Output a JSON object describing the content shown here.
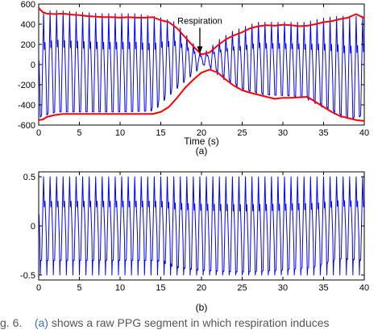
{
  "chart_data": [
    {
      "type": "line",
      "panel_label": "(a)",
      "xlabel": "Time (s)",
      "ylabel": "",
      "xlim": [
        0,
        40
      ],
      "ylim": [
        -600,
        600
      ],
      "xticks": [
        0,
        5,
        10,
        15,
        20,
        25,
        30,
        35,
        40
      ],
      "yticks": [
        600,
        400,
        200,
        0,
        -200,
        -400,
        -600
      ],
      "grid": false,
      "annotation": {
        "text": "Respiration",
        "x": 19.8,
        "y": 100
      },
      "series": [
        {
          "color": "#0000ff",
          "kind": "raw-ppg-oscillation",
          "cycle_period_s": 0.8,
          "upper_limit": [
            [
              0,
              500
            ],
            [
              2,
              540
            ],
            [
              5,
              520
            ],
            [
              8,
              505
            ],
            [
              12,
              505
            ],
            [
              15,
              470
            ],
            [
              17,
              420
            ],
            [
              19,
              230
            ],
            [
              20,
              120
            ],
            [
              21,
              140
            ],
            [
              22,
              230
            ],
            [
              24,
              330
            ],
            [
              27,
              420
            ],
            [
              30,
              420
            ],
            [
              33,
              420
            ],
            [
              35,
              460
            ],
            [
              37,
              480
            ],
            [
              40,
              480
            ]
          ],
          "lower_limit": [
            [
              0,
              -520
            ],
            [
              2,
              -470
            ],
            [
              5,
              -470
            ],
            [
              10,
              -470
            ],
            [
              14,
              -460
            ],
            [
              15,
              -370
            ],
            [
              17,
              -220
            ],
            [
              19,
              -80
            ],
            [
              20,
              0
            ],
            [
              21,
              -10
            ],
            [
              23,
              -140
            ],
            [
              25,
              -245
            ],
            [
              28,
              -300
            ],
            [
              31,
              -310
            ],
            [
              33,
              -330
            ],
            [
              36,
              -455
            ],
            [
              38,
              -545
            ],
            [
              40,
              -500
            ]
          ]
        },
        {
          "name": "",
          "color": "#ff0000",
          "kind": "upper-envelope",
          "x": [
            0,
            0.5,
            1,
            2,
            3,
            4,
            5,
            6,
            7,
            8,
            9,
            10,
            11,
            12,
            13,
            14,
            15,
            16,
            17,
            18,
            19,
            20,
            21,
            22,
            23,
            24,
            25,
            26,
            27,
            28,
            29,
            30,
            31,
            32,
            33,
            34,
            35,
            36,
            37,
            38,
            39,
            40
          ],
          "y": [
            560,
            520,
            505,
            500,
            505,
            495,
            490,
            480,
            475,
            470,
            470,
            465,
            470,
            465,
            465,
            470,
            440,
            420,
            360,
            270,
            180,
            100,
            120,
            190,
            250,
            290,
            320,
            360,
            380,
            390,
            385,
            395,
            390,
            380,
            385,
            400,
            420,
            430,
            450,
            465,
            500,
            460
          ]
        },
        {
          "name": "",
          "color": "#ff0000",
          "kind": "lower-envelope",
          "x": [
            0,
            0.5,
            1,
            2,
            3,
            4,
            5,
            6,
            7,
            8,
            9,
            10,
            11,
            12,
            13,
            14,
            15,
            16,
            17,
            18,
            19,
            20,
            21,
            22,
            23,
            24,
            25,
            26,
            27,
            28,
            29,
            30,
            31,
            32,
            33,
            34,
            35,
            36,
            37,
            38,
            39,
            40
          ],
          "y": [
            -550,
            -545,
            -520,
            -500,
            -490,
            -490,
            -490,
            -490,
            -490,
            -490,
            -490,
            -490,
            -490,
            -490,
            -490,
            -490,
            -470,
            -420,
            -330,
            -230,
            -150,
            -80,
            -50,
            -80,
            -150,
            -210,
            -255,
            -280,
            -300,
            -320,
            -340,
            -330,
            -330,
            -325,
            -320,
            -370,
            -420,
            -470,
            -510,
            -530,
            -550,
            -560
          ]
        }
      ]
    },
    {
      "type": "line",
      "panel_label": "(b)",
      "xlabel": "",
      "ylabel": "",
      "xlim": [
        0,
        40
      ],
      "ylim": [
        -0.55,
        0.55
      ],
      "xticks": [
        0,
        5,
        10,
        15,
        20,
        25,
        30,
        35,
        40
      ],
      "yticks": [
        0.5,
        0,
        -0.5
      ],
      "grid": false,
      "series": [
        {
          "color": "#0000ff",
          "kind": "normalized-ppg-oscillation",
          "cycle_period_s": 0.8,
          "upper_limit": [
            [
              0,
              0.5
            ],
            [
              40,
              0.5
            ]
          ],
          "lower_limit": [
            [
              0,
              -0.35
            ],
            [
              15,
              -0.35
            ],
            [
              17,
              -0.42
            ],
            [
              20,
              -0.45
            ],
            [
              25,
              -0.47
            ],
            [
              30,
              -0.45
            ],
            [
              34,
              -0.42
            ],
            [
              37,
              -0.33
            ],
            [
              40,
              -0.35
            ]
          ],
          "peak_value": 0.5,
          "trough_value": -0.5
        }
      ]
    }
  ],
  "caption": {
    "prefix": "g. 6.",
    "link": "(a)",
    "text": "shows a raw PPG segment in which respiration induces"
  }
}
